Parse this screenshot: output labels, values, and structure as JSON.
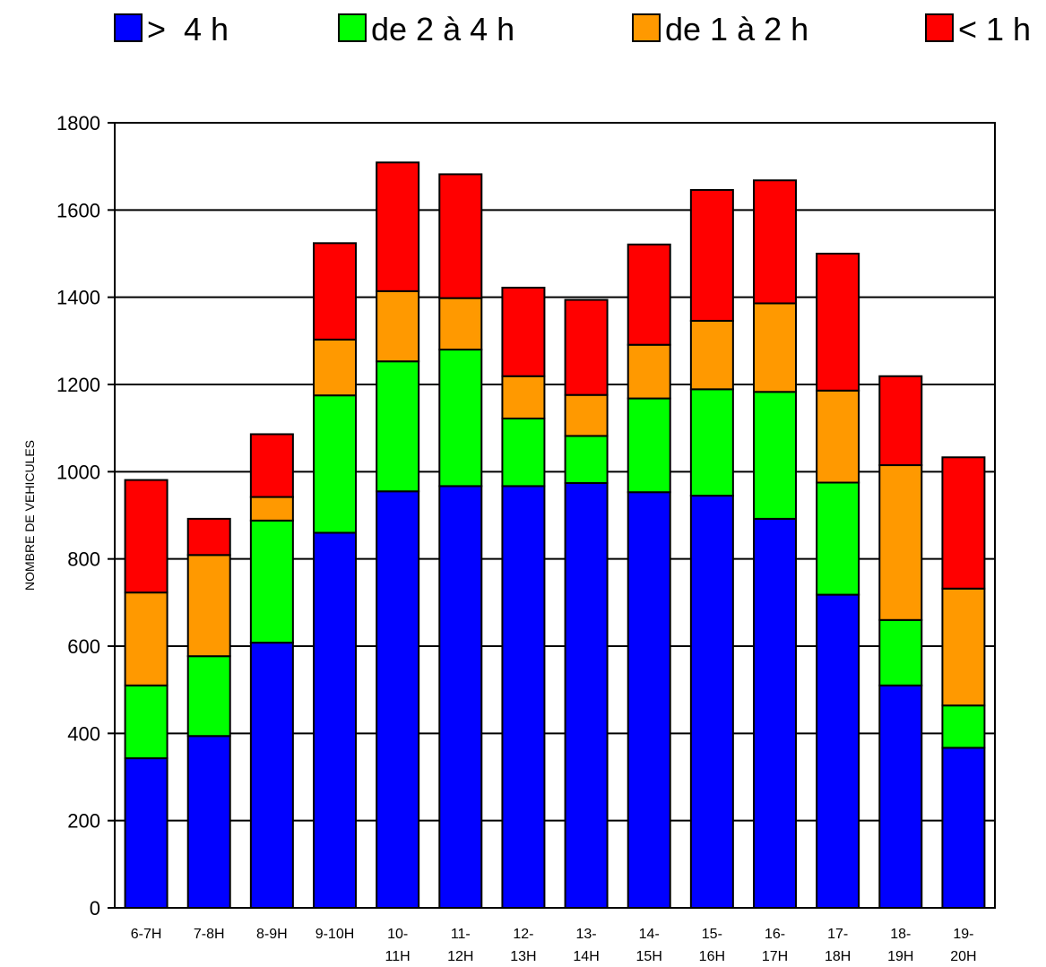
{
  "chart_data": {
    "type": "bar",
    "stacked": true,
    "title": "",
    "xlabel": "",
    "ylabel": "NOMBRE DE VEHICULES",
    "ylim": [
      0,
      1800
    ],
    "yticks": [
      0,
      200,
      400,
      600,
      800,
      1000,
      1200,
      1400,
      1600,
      1800
    ],
    "grid": true,
    "legend_position": "top",
    "categories": [
      [
        "6-7H"
      ],
      [
        "7-8H"
      ],
      [
        "8-9H"
      ],
      [
        "9-10H"
      ],
      [
        "10-",
        "11H"
      ],
      [
        "11-",
        "12H"
      ],
      [
        "12-",
        "13H"
      ],
      [
        "13-",
        "14H"
      ],
      [
        "14-",
        "15H"
      ],
      [
        "15-",
        "16H"
      ],
      [
        "16-",
        "17H"
      ],
      [
        "17-",
        "18H"
      ],
      [
        "18-",
        "19H"
      ],
      [
        "19-",
        "20H"
      ]
    ],
    "series": [
      {
        "name": ">  4 h",
        "color": "#0000ff",
        "values": [
          343,
          394,
          608,
          860,
          955,
          967,
          967,
          974,
          953,
          945,
          892,
          718,
          510,
          367
        ]
      },
      {
        "name": "de 2 à 4 h",
        "color": "#00ff00",
        "values": [
          167,
          183,
          280,
          315,
          298,
          313,
          155,
          108,
          215,
          244,
          291,
          257,
          150,
          97
        ]
      },
      {
        "name": "de 1 à 2 h",
        "color": "#ff9900",
        "values": [
          213,
          232,
          54,
          128,
          161,
          118,
          97,
          94,
          123,
          157,
          203,
          211,
          355,
          268
        ]
      },
      {
        "name": "< 1 h",
        "color": "#ff0000",
        "values": [
          258,
          83,
          144,
          221,
          295,
          284,
          203,
          218,
          230,
          300,
          282,
          314,
          204,
          301
        ]
      }
    ]
  }
}
